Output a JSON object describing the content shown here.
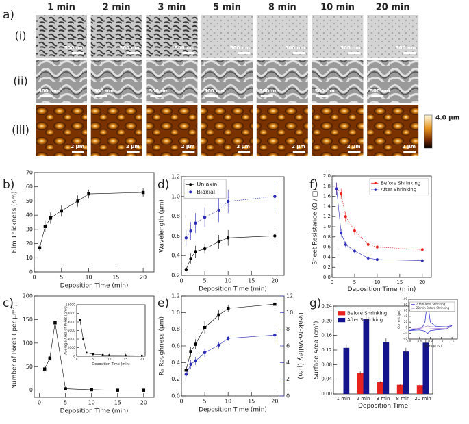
{
  "figure": {
    "panel_labels": [
      "a)",
      "b)",
      "c)",
      "d)",
      "e)",
      "f)",
      "g)"
    ],
    "times": [
      "1 min",
      "2 min",
      "3 min",
      "5 min",
      "8 min",
      "10 min",
      "20 min"
    ],
    "rows": [
      "(i)",
      "(ii)",
      "(iii)"
    ],
    "scale_bars": [
      "500 nm",
      "500 nm",
      "2 μm"
    ],
    "colorbar_label": "4.0 μm"
  },
  "chart_data": [
    {
      "type": "line",
      "xlabel": "Deposition Time (min)",
      "ylabel": "Film Thickness (nm)",
      "xlim": [
        0,
        22
      ],
      "xticks": [
        0,
        5,
        10,
        15,
        20
      ],
      "ylim": [
        0,
        70
      ],
      "yticks": [
        0,
        10,
        20,
        30,
        40,
        50,
        60,
        70
      ],
      "series": [
        {
          "color": "#000000",
          "marker": "square",
          "x": [
            1,
            2,
            3,
            5,
            8,
            10,
            20
          ],
          "values": [
            17,
            32,
            38,
            43,
            50,
            55,
            56
          ],
          "errors": [
            2,
            4,
            4,
            4,
            4,
            3,
            3
          ]
        }
      ]
    },
    {
      "type": "line",
      "xlabel": "Deposition Time (min)",
      "ylabel": "Number of Pores ( per μm²)",
      "xlim": [
        -1,
        22
      ],
      "xticks": [
        0,
        5,
        10,
        15,
        20
      ],
      "ylim": [
        -15,
        200
      ],
      "yticks": [
        0,
        50,
        100,
        150,
        200
      ],
      "series": [
        {
          "color": "#000000",
          "marker": "square",
          "x": [
            1,
            2,
            3,
            5,
            10,
            15,
            20
          ],
          "values": [
            45,
            68,
            143,
            3,
            1,
            0,
            0
          ],
          "errors": [
            8,
            5,
            22,
            1,
            1,
            0.5,
            0.5
          ]
        }
      ]
    },
    {
      "type": "line",
      "xlabel": "Deposition Time (min)",
      "ylabel": "Average Area of Pores (nm²)",
      "xlim": [
        0,
        21
      ],
      "xticks": [
        0,
        5,
        10,
        15,
        20
      ],
      "ylim": [
        0,
        12000
      ],
      "yticks": [
        0,
        2000,
        4000,
        6000,
        8000,
        10000,
        12000
      ],
      "series": [
        {
          "color": "#000000",
          "marker": "square",
          "x": [
            1,
            2,
            3,
            5,
            8,
            10,
            15,
            20
          ],
          "values": [
            8500,
            4000,
            800,
            500,
            300,
            200,
            150,
            100
          ]
        }
      ]
    },
    {
      "type": "line",
      "xlabel": "Deposition Time (min)",
      "ylabel": "Wavelength (μm)",
      "legend": "upper left",
      "xlim": [
        0,
        22
      ],
      "xticks": [
        0,
        5,
        10,
        15,
        20
      ],
      "ylim": [
        0.2,
        1.2
      ],
      "yticks": [
        0.2,
        0.4,
        0.6,
        0.8,
        {
          "value": 1.0,
          "label": "1.0"
        },
        1.2
      ],
      "series": [
        {
          "name": "Uniaxial",
          "color": "#000000",
          "marker": "circle",
          "x": [
            1,
            2,
            3,
            5,
            8,
            10,
            20
          ],
          "values": [
            0.26,
            0.37,
            0.44,
            0.47,
            0.54,
            0.58,
            0.6
          ],
          "errors": [
            0.03,
            0.05,
            0.06,
            0.05,
            0.07,
            0.08,
            0.1
          ]
        },
        {
          "name": "Biaxial",
          "color": "#2b2bb8",
          "marker": "circle",
          "linestyle": "dotted",
          "x": [
            1,
            2,
            3,
            5,
            8,
            10,
            20
          ],
          "values": [
            0.58,
            0.65,
            0.73,
            0.79,
            0.86,
            0.95,
            1.0
          ],
          "errors": [
            0.08,
            0.09,
            0.1,
            0.1,
            0.12,
            0.12,
            0.15
          ]
        }
      ]
    },
    {
      "type": "line",
      "xlabel": "Deposition Time (min)",
      "ylabel": "Rₐ Roughness (μm)",
      "y2label": "Peak-to-Valley (μm)",
      "y2color": "#2b2bb8",
      "xlim": [
        0,
        22
      ],
      "xticks": [
        0,
        5,
        10,
        15,
        20
      ],
      "ylim": [
        0,
        1.2
      ],
      "yticks": [
        {
          "value": 0,
          "label": "0.0"
        },
        0.2,
        0.4,
        0.6,
        0.8,
        {
          "value": 1.0,
          "label": "1.0"
        },
        1.2
      ],
      "y2lim": [
        0,
        12
      ],
      "y2ticks": [
        0,
        2,
        4,
        6,
        8,
        10,
        12
      ],
      "series": [
        {
          "color": "#000000",
          "marker": "square",
          "x": [
            1,
            2,
            3,
            5,
            8,
            10,
            20
          ],
          "values": [
            0.31,
            0.53,
            0.62,
            0.82,
            0.97,
            1.05,
            1.1
          ],
          "errors": [
            0.05,
            0.06,
            0.06,
            0.08,
            0.06,
            0.04,
            0.04
          ]
        },
        {
          "color": "#2b2bb8",
          "marker": "circle",
          "axis": "y2",
          "x": [
            1,
            2,
            3,
            5,
            8,
            10,
            20
          ],
          "values": [
            2.6,
            3.8,
            4.2,
            5.2,
            6.1,
            6.9,
            7.3
          ],
          "errors": [
            0.4,
            0.5,
            0.5,
            0.5,
            0.4,
            0.3,
            0.8
          ]
        }
      ]
    },
    {
      "type": "line",
      "xlabel": "Deposition Time (min)",
      "ylabel": "Sheet Resistance (Ω / □)",
      "legend": "upper right",
      "xlim": [
        0,
        22
      ],
      "xticks": [
        0,
        5,
        10,
        15,
        20
      ],
      "ylim": [
        0,
        2.0
      ],
      "yticks": [
        {
          "value": 0,
          "label": "0.0"
        },
        0.2,
        0.4,
        0.6,
        0.8,
        {
          "value": 1.0,
          "label": "1.0"
        },
        1.2,
        1.4,
        1.6,
        1.8,
        {
          "value": 2.0,
          "label": "2.0"
        }
      ],
      "series": [
        {
          "name": "Before Shrinking",
          "color": "#e8231e",
          "marker": "circle",
          "linestyle": "dotted",
          "x": [
            1,
            2,
            3,
            5,
            8,
            10,
            20
          ],
          "values": [
            1.75,
            1.65,
            1.2,
            0.92,
            0.65,
            0.6,
            0.55
          ],
          "errors": [
            0.12,
            0.1,
            0.1,
            0.08,
            0.05,
            0.05,
            0.03
          ]
        },
        {
          "name": "After Shrinking",
          "color": "#2b2bb8",
          "marker": "circle",
          "x": [
            1,
            2,
            3,
            5,
            8,
            10,
            20
          ],
          "values": [
            1.75,
            0.88,
            0.65,
            0.52,
            0.38,
            0.35,
            0.33
          ],
          "errors": [
            0.12,
            0.08,
            0.06,
            0.05,
            0.03,
            0.03,
            0.02
          ]
        }
      ]
    },
    {
      "type": "bar",
      "xlabel": "Deposition Time",
      "ylabel": "Surface Area (cm²)",
      "legend": "upper left",
      "categories": [
        "1 min",
        "2 min",
        "3 min",
        "8 min",
        "20 min"
      ],
      "ylim": [
        0,
        0.24
      ],
      "yticks": [
        {
          "value": 0,
          "label": "0.00"
        },
        {
          "value": 0.04,
          "label": "0.04"
        },
        {
          "value": 0.08,
          "label": "0.08"
        },
        {
          "value": 0.12,
          "label": "0.12"
        },
        {
          "value": 0.16,
          "label": "0.16"
        },
        {
          "value": 0.2,
          "label": "0.20"
        },
        {
          "value": 0.24,
          "label": "0.24"
        }
      ],
      "series": [
        {
          "name": "Before Shrinking",
          "color": "#e8231e",
          "values": [
            null,
            0.058,
            0.032,
            0.025,
            0.024
          ],
          "errors": [
            null,
            0.004,
            0.003,
            0.002,
            0.002
          ]
        },
        {
          "name": "After Shrinking",
          "color": "#14148c",
          "values": [
            0.126,
            0.205,
            0.142,
            0.116,
            0.14
          ],
          "errors": [
            0.01,
            0.012,
            0.01,
            0.01,
            0.01
          ]
        }
      ]
    },
    {
      "type": "line",
      "xlabel": "Voltage (V)",
      "ylabel": "Current (μA)",
      "legend": "upper right",
      "xlim": [
        0,
        1.8
      ],
      "xticks": [
        {
          "value": 0,
          "label": "0.0"
        },
        0.4,
        0.8,
        1.2,
        1.6
      ],
      "ylim": [
        -40,
        100
      ],
      "yticks": [
        -40,
        -20,
        0,
        20,
        40,
        60,
        80,
        100
      ],
      "series": [
        {
          "name": "2 min After Shrinking",
          "color": "#3a3ad0",
          "x": [
            0.0,
            0.3,
            0.5,
            0.6,
            0.65,
            0.7,
            0.8,
            1.0,
            1.4,
            1.6,
            1.4,
            1.0,
            0.8,
            0.7,
            0.6,
            0.4,
            0.0
          ],
          "values": [
            -10,
            -5,
            0,
            20,
            60,
            90,
            20,
            5,
            3,
            8,
            -5,
            -8,
            -10,
            -20,
            -12,
            -8,
            -10
          ]
        },
        {
          "name": "20 min Before Shrinking",
          "color": "#b58cd8",
          "x": [
            0.0,
            0.3,
            0.5,
            0.6,
            0.65,
            0.7,
            0.8,
            1.0,
            1.4,
            1.6,
            1.4,
            1.0,
            0.8,
            0.7,
            0.6,
            0.4,
            0.0
          ],
          "values": [
            -5,
            -3,
            0,
            3,
            5,
            6,
            4,
            3,
            2,
            4,
            -2,
            -3,
            -4,
            -5,
            -5,
            -4,
            -5
          ]
        }
      ]
    }
  ]
}
